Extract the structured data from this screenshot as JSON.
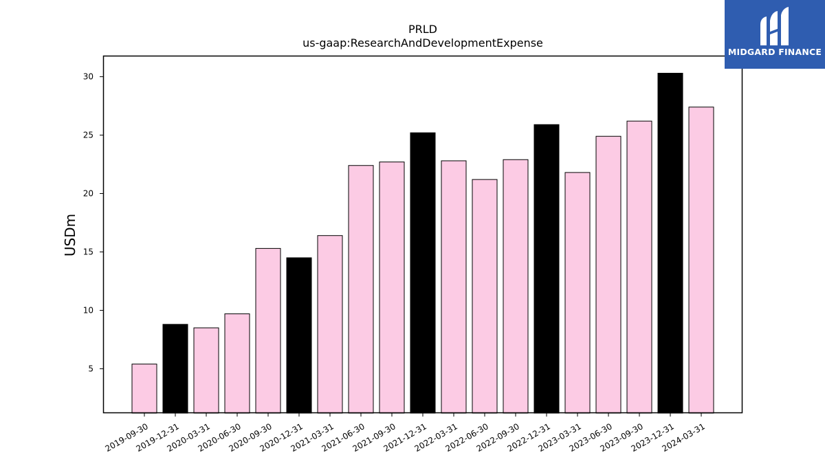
{
  "chart_data": {
    "type": "bar",
    "title": "PRLD",
    "subtitle": "us-gaap:ResearchAndDevelopmentExpense",
    "xlabel": "",
    "ylabel": "USDm",
    "ylim": [
      1.2,
      31.8
    ],
    "yticks": [
      5,
      10,
      15,
      20,
      25,
      30
    ],
    "grid": false,
    "categories": [
      "2019-09-30",
      "2019-12-31",
      "2020-03-31",
      "2020-06-30",
      "2020-09-30",
      "2020-12-31",
      "2021-03-31",
      "2021-06-30",
      "2021-09-30",
      "2021-12-31",
      "2022-03-31",
      "2022-06-30",
      "2022-09-30",
      "2022-12-31",
      "2023-03-31",
      "2023-06-30",
      "2023-09-30",
      "2023-12-31",
      "2024-03-31"
    ],
    "values": [
      5.4,
      8.8,
      8.5,
      9.7,
      15.3,
      14.5,
      16.4,
      22.4,
      22.7,
      25.2,
      22.8,
      21.2,
      22.9,
      25.9,
      21.8,
      24.9,
      26.2,
      30.3,
      27.4
    ],
    "bar_colors": [
      "#fccbe4",
      "#000000",
      "#fccbe4",
      "#fccbe4",
      "#fccbe4",
      "#000000",
      "#fccbe4",
      "#fccbe4",
      "#fccbe4",
      "#000000",
      "#fccbe4",
      "#fccbe4",
      "#fccbe4",
      "#000000",
      "#fccbe4",
      "#fccbe4",
      "#fccbe4",
      "#000000",
      "#fccbe4"
    ]
  },
  "logo": {
    "text": "MIDGARD FINANCE",
    "background": "#2f5db0"
  }
}
